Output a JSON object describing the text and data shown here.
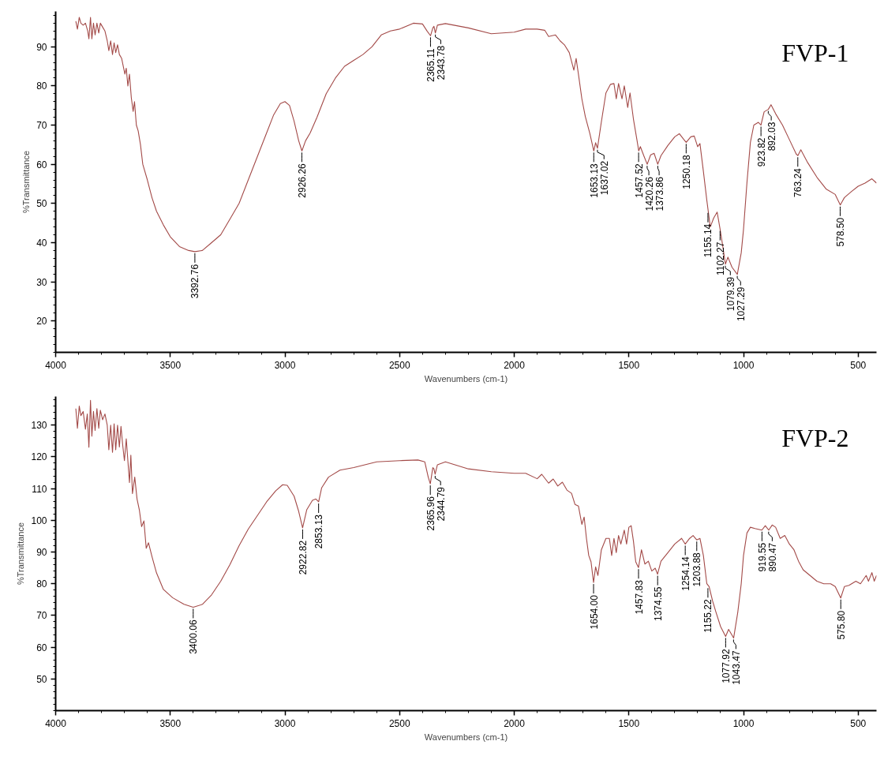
{
  "chart_data": [
    {
      "type": "line",
      "title": "FVP-1",
      "xlabel": "Wavenumbers (cm-1)",
      "ylabel": "%Transmittance",
      "color": "#a34a48",
      "grid": false,
      "xlim": [
        4000,
        420
      ],
      "ylim": [
        12,
        99
      ],
      "xticks": [
        4000,
        3500,
        3000,
        2500,
        2000,
        1500,
        1000,
        500
      ],
      "yticks": [
        20,
        30,
        40,
        50,
        60,
        70,
        80,
        90
      ],
      "x": [
        3912,
        3905,
        3897,
        3890,
        3880,
        3870,
        3860,
        3855,
        3848,
        3842,
        3835,
        3828,
        3820,
        3812,
        3805,
        3795,
        3785,
        3775,
        3768,
        3760,
        3752,
        3745,
        3738,
        3730,
        3722,
        3712,
        3705,
        3698,
        3692,
        3685,
        3678,
        3670,
        3662,
        3656,
        3648,
        3640,
        3630,
        3620,
        3600,
        3580,
        3560,
        3530,
        3500,
        3460,
        3420,
        3393,
        3360,
        3320,
        3280,
        3240,
        3200,
        3160,
        3120,
        3080,
        3050,
        3020,
        3000,
        2980,
        2960,
        2940,
        2926,
        2910,
        2890,
        2860,
        2820,
        2780,
        2740,
        2700,
        2660,
        2620,
        2580,
        2540,
        2500,
        2440,
        2400,
        2380,
        2365,
        2355,
        2350,
        2344,
        2335,
        2300,
        2200,
        2100,
        2000,
        1950,
        1900,
        1867,
        1850,
        1820,
        1800,
        1780,
        1760,
        1740,
        1730,
        1720,
        1705,
        1690,
        1670,
        1653,
        1645,
        1637,
        1620,
        1600,
        1580,
        1565,
        1555,
        1545,
        1530,
        1520,
        1505,
        1495,
        1480,
        1465,
        1457,
        1450,
        1435,
        1420,
        1405,
        1390,
        1374,
        1360,
        1330,
        1300,
        1280,
        1260,
        1250,
        1230,
        1215,
        1200,
        1190,
        1175,
        1160,
        1145,
        1130,
        1115,
        1102,
        1090,
        1079,
        1068,
        1050,
        1027,
        1010,
        1000,
        985,
        970,
        955,
        935,
        924,
        910,
        892,
        880,
        860,
        830,
        800,
        770,
        763,
        750,
        720,
        680,
        640,
        600,
        578,
        560,
        530,
        500,
        470,
        440,
        420
      ],
      "values": [
        96.5,
        94.5,
        97.5,
        96,
        95.5,
        96,
        94,
        92,
        97.5,
        92,
        96,
        93,
        96,
        93.5,
        96,
        95,
        94,
        91.5,
        89,
        91.5,
        88,
        91,
        88.5,
        90.5,
        88,
        87,
        85,
        83,
        84.5,
        80,
        83,
        77,
        73.5,
        76,
        70,
        68.5,
        65,
        60,
        56,
        51.5,
        48,
        44.5,
        41.5,
        39,
        38,
        37.7,
        38,
        40,
        42,
        46,
        50,
        56,
        62,
        68,
        72.5,
        75.5,
        76,
        75,
        71,
        66,
        63.4,
        66,
        68,
        72,
        78,
        82,
        85,
        86.5,
        88,
        90,
        93,
        94,
        94.5,
        96,
        95.8,
        94,
        92.8,
        94.8,
        95.2,
        93.5,
        95.5,
        95.9,
        94.8,
        93.3,
        93.7,
        94.5,
        94.5,
        94.2,
        92.6,
        93,
        91.5,
        90.4,
        88.5,
        84,
        87,
        83,
        76.7,
        72.2,
        67.8,
        63.4,
        65.5,
        64.1,
        70.8,
        78.2,
        80.4,
        80.6,
        76.7,
        80.6,
        76.7,
        80,
        74.5,
        78.2,
        71.5,
        66.3,
        63.4,
        64.5,
        62.2,
        60,
        62.4,
        62.8,
        60,
        62.2,
        64.8,
        67,
        67.8,
        66.3,
        65.6,
        67,
        67.2,
        64.5,
        65.3,
        58.2,
        50.8,
        44,
        46.3,
        47.8,
        43.4,
        38.9,
        34.5,
        36.3,
        33.7,
        31.9,
        37.4,
        43.4,
        55.3,
        65.6,
        70,
        70.7,
        70,
        73.4,
        74,
        75.2,
        72.9,
        70,
        66.3,
        62.6,
        62.2,
        63.7,
        60.4,
        56.7,
        53.7,
        52.3,
        49.6,
        51.5,
        53,
        54.4,
        55.2,
        56.3,
        55.2
      ],
      "annotations": [
        {
          "text": "3392.76",
          "x": 3392.76,
          "y": 37.7
        },
        {
          "text": "2926.26",
          "x": 2926.26,
          "y": 63.4
        },
        {
          "text": "2365.11",
          "x": 2365.11,
          "y": 92.8
        },
        {
          "text": "2343.78",
          "x": 2343.78,
          "y": 93.5
        },
        {
          "text": "1653.13",
          "x": 1653.13,
          "y": 63.4
        },
        {
          "text": "1637.02",
          "x": 1637.02,
          "y": 64.1
        },
        {
          "text": "1457.52",
          "x": 1457.52,
          "y": 63.4
        },
        {
          "text": "1420.26",
          "x": 1420.26,
          "y": 60
        },
        {
          "text": "1373.86",
          "x": 1373.86,
          "y": 60
        },
        {
          "text": "1250.18",
          "x": 1250.18,
          "y": 65.6
        },
        {
          "text": "1155.14",
          "x": 1155.14,
          "y": 48
        },
        {
          "text": "1102.27",
          "x": 1102.27,
          "y": 43.4
        },
        {
          "text": "1079.39",
          "x": 1079.39,
          "y": 34.5
        },
        {
          "text": "1027.29",
          "x": 1027.29,
          "y": 31.9
        },
        {
          "text": "923.82",
          "x": 923.82,
          "y": 70
        },
        {
          "text": "892.03",
          "x": 892.03,
          "y": 74
        },
        {
          "text": "763.24",
          "x": 763.24,
          "y": 62.2
        },
        {
          "text": "578.50",
          "x": 578.5,
          "y": 49.6
        }
      ]
    },
    {
      "type": "line",
      "title": "FVP-2",
      "xlabel": "Wavenumbers (cm-1)",
      "ylabel": "%Transmittance",
      "color": "#a34a48",
      "grid": false,
      "xlim": [
        4000,
        420
      ],
      "ylim": [
        40,
        139
      ],
      "xticks": [
        4000,
        3500,
        3000,
        2500,
        2000,
        1500,
        1000,
        500
      ],
      "yticks": [
        50,
        60,
        70,
        80,
        90,
        100,
        110,
        120,
        130
      ],
      "x": [
        3912,
        3905,
        3897,
        3890,
        3880,
        3870,
        3862,
        3855,
        3848,
        3842,
        3835,
        3828,
        3820,
        3812,
        3805,
        3795,
        3785,
        3775,
        3768,
        3760,
        3752,
        3745,
        3738,
        3730,
        3722,
        3715,
        3708,
        3700,
        3692,
        3685,
        3678,
        3672,
        3665,
        3655,
        3645,
        3635,
        3625,
        3615,
        3605,
        3595,
        3580,
        3560,
        3530,
        3490,
        3440,
        3400,
        3360,
        3320,
        3280,
        3240,
        3200,
        3160,
        3120,
        3080,
        3040,
        3010,
        2990,
        2960,
        2940,
        2923,
        2905,
        2880,
        2865,
        2853,
        2840,
        2810,
        2760,
        2700,
        2600,
        2500,
        2420,
        2390,
        2375,
        2366,
        2355,
        2350,
        2345,
        2335,
        2300,
        2200,
        2100,
        2000,
        1950,
        1900,
        1880,
        1850,
        1830,
        1810,
        1790,
        1770,
        1750,
        1735,
        1720,
        1705,
        1695,
        1685,
        1675,
        1665,
        1654,
        1645,
        1635,
        1620,
        1600,
        1585,
        1575,
        1565,
        1555,
        1545,
        1535,
        1520,
        1510,
        1500,
        1490,
        1480,
        1470,
        1458,
        1445,
        1430,
        1415,
        1400,
        1385,
        1375,
        1360,
        1330,
        1300,
        1270,
        1254,
        1235,
        1220,
        1204,
        1190,
        1175,
        1160,
        1150,
        1135,
        1120,
        1100,
        1078,
        1065,
        1043,
        1025,
        1010,
        1000,
        985,
        970,
        950,
        920,
        905,
        890,
        875,
        860,
        840,
        820,
        800,
        780,
        760,
        740,
        710,
        680,
        650,
        620,
        600,
        576,
        560,
        540,
        510,
        490,
        465,
        455,
        440,
        430,
        420
      ],
      "values": [
        135.2,
        129,
        136,
        133,
        134.3,
        128.7,
        133.5,
        123,
        137.8,
        126.5,
        134.3,
        128.3,
        135.2,
        129,
        134.7,
        131.7,
        133.5,
        130,
        122.2,
        130,
        121.4,
        130.4,
        122.2,
        130,
        123.1,
        129.6,
        124,
        118.8,
        125.7,
        118.8,
        111.9,
        120.5,
        108.4,
        113.6,
        106.7,
        103.3,
        98,
        99.8,
        91.2,
        92.9,
        88.6,
        83.4,
        78.2,
        75.6,
        73.5,
        72.6,
        73.5,
        76.5,
        80.8,
        86,
        92,
        97.2,
        101.5,
        105.8,
        109.3,
        111.2,
        111,
        107.6,
        102.8,
        97.6,
        103.3,
        106.3,
        106.7,
        105.8,
        110.2,
        113.6,
        115.8,
        116.6,
        118.4,
        118.8,
        119,
        118.4,
        113.6,
        111.5,
        116.6,
        116.2,
        114.5,
        117.5,
        118.4,
        116.2,
        115.3,
        114.8,
        114.8,
        113.1,
        114.5,
        111.7,
        113,
        110.8,
        112,
        109.5,
        108.5,
        105,
        104.5,
        98.7,
        101,
        94.3,
        88.9,
        86.9,
        80.4,
        85.3,
        82.6,
        90.7,
        94.3,
        94.3,
        88.9,
        94.3,
        89.8,
        95.2,
        92.5,
        96.9,
        92.5,
        97.8,
        98.3,
        93.4,
        86.9,
        85.1,
        90.7,
        86.2,
        87.1,
        84,
        84.9,
        83,
        87.1,
        89.8,
        92.5,
        94.3,
        92.5,
        94.3,
        95.2,
        93.8,
        94.3,
        88.9,
        80,
        79.1,
        74.6,
        71,
        66.5,
        63.4,
        65.6,
        62.9,
        71,
        80,
        88.9,
        96,
        97.8,
        97.4,
        96.9,
        98.3,
        96.9,
        98.5,
        97.8,
        94.3,
        95.2,
        92.5,
        90.7,
        87.1,
        84.4,
        82.6,
        80.8,
        80,
        80,
        79.1,
        75.5,
        79.1,
        79.5,
        80.8,
        80,
        82.6,
        80.8,
        83.5,
        80.8,
        82.6
      ],
      "annotations": [
        {
          "text": "3400.06",
          "x": 3400.06,
          "y": 72.6
        },
        {
          "text": "2922.82",
          "x": 2922.82,
          "y": 97.6
        },
        {
          "text": "2853.13",
          "x": 2853.13,
          "y": 105.8
        },
        {
          "text": "2365.96",
          "x": 2365.96,
          "y": 111.5
        },
        {
          "text": "2344.79",
          "x": 2344.79,
          "y": 114.5
        },
        {
          "text": "1654.00",
          "x": 1654.0,
          "y": 80.4
        },
        {
          "text": "1457.83",
          "x": 1457.83,
          "y": 85.1
        },
        {
          "text": "1374.55",
          "x": 1374.55,
          "y": 83
        },
        {
          "text": "1254.14",
          "x": 1254.14,
          "y": 92.5
        },
        {
          "text": "1203.88",
          "x": 1203.88,
          "y": 93.8
        },
        {
          "text": "1155.22",
          "x": 1155.22,
          "y": 79.1
        },
        {
          "text": "1077.92",
          "x": 1077.92,
          "y": 63.4
        },
        {
          "text": "1043.47",
          "x": 1043.47,
          "y": 62.9
        },
        {
          "text": "919.55",
          "x": 919.55,
          "y": 96.9
        },
        {
          "text": "890.47",
          "x": 890.47,
          "y": 96.9
        },
        {
          "text": "575.80",
          "x": 575.8,
          "y": 75.5
        }
      ]
    }
  ]
}
